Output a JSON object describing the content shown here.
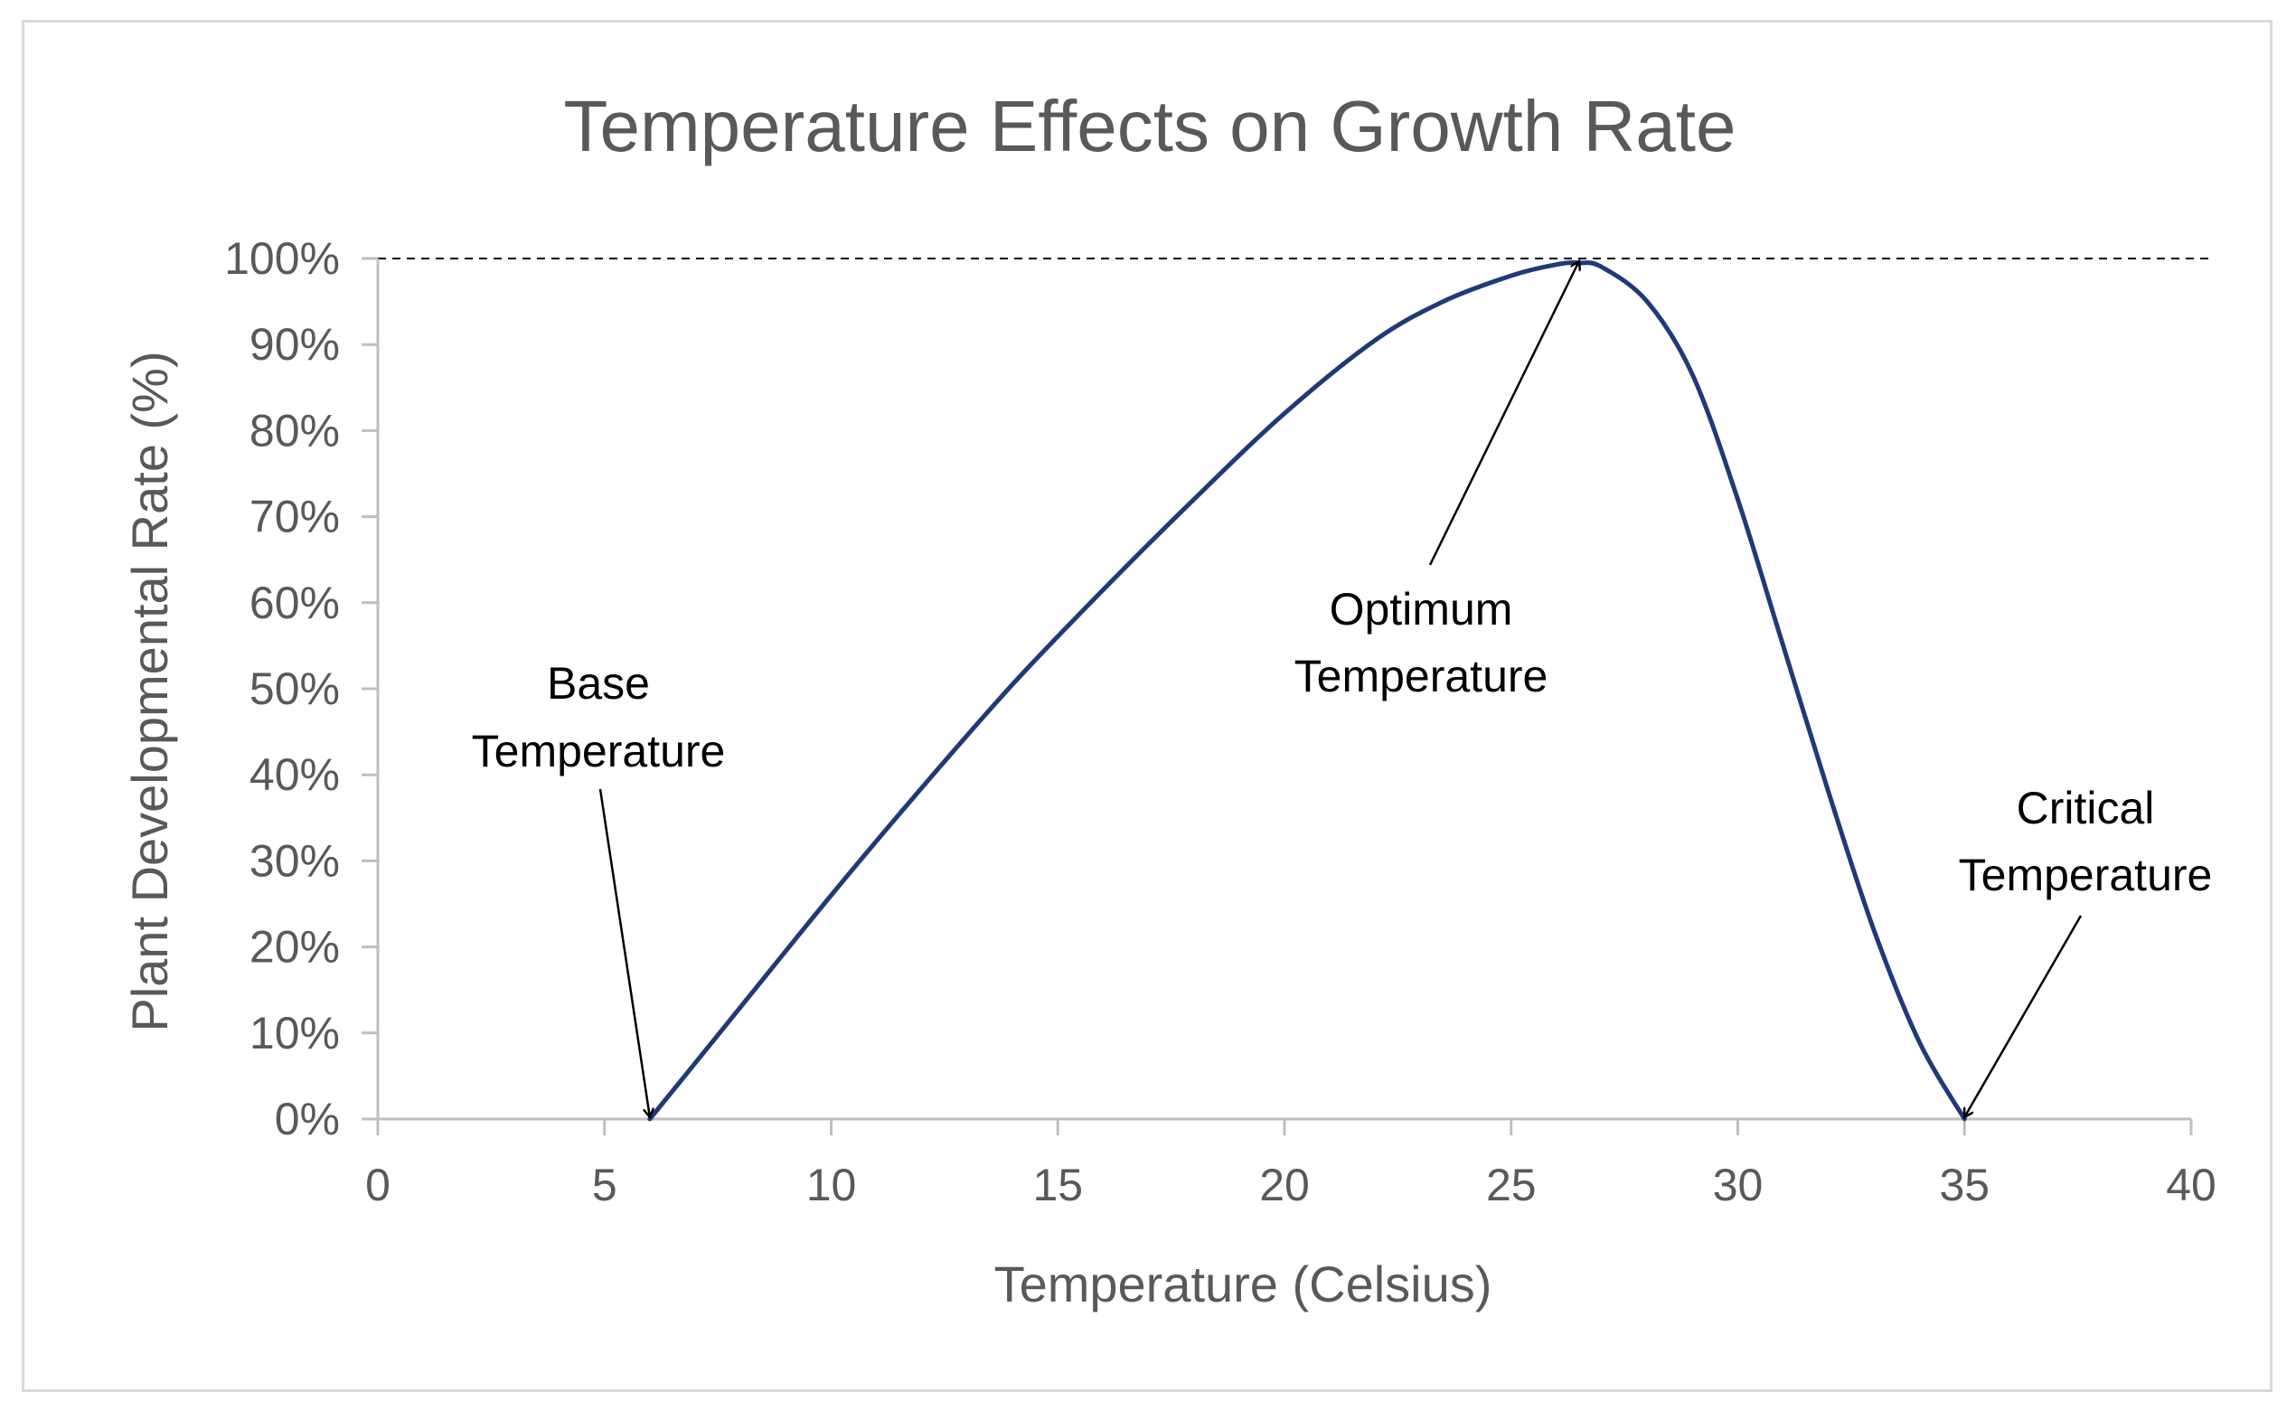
{
  "chart_data": {
    "type": "line",
    "title": "Temperature  Effects on Growth Rate",
    "xlabel": "Temperature (Celsius)",
    "ylabel": "Plant Developmental Rate (%)",
    "xlim": [
      0,
      40
    ],
    "ylim": [
      0,
      100
    ],
    "x_ticks": [
      0,
      5,
      10,
      15,
      20,
      25,
      30,
      35,
      40
    ],
    "x_tick_labels": [
      "0",
      "5",
      "10",
      "15",
      "20",
      "25",
      "30",
      "35",
      "40"
    ],
    "y_ticks": [
      0,
      10,
      20,
      30,
      40,
      50,
      60,
      70,
      80,
      90,
      100
    ],
    "y_tick_labels": [
      "0%",
      "10%",
      "20%",
      "30%",
      "40%",
      "50%",
      "60%",
      "70%",
      "80%",
      "90%",
      "100%"
    ],
    "grid": false,
    "reference_line": {
      "y": 100,
      "style": "dashed"
    },
    "series": [
      {
        "name": "Developmental Rate",
        "color": "#1f3a78",
        "x": [
          6,
          8,
          10,
          12,
          14,
          16,
          18,
          20,
          22,
          23.5,
          25,
          26,
          26.5,
          27,
          28,
          29,
          30,
          31,
          32,
          33,
          34,
          35
        ],
        "y": [
          0,
          13,
          26,
          38.5,
          50.5,
          61.5,
          72,
          82,
          90.5,
          95,
          98,
          99.3,
          99.5,
          99,
          95,
          86.5,
          72,
          55,
          38,
          22,
          9,
          0
        ]
      }
    ],
    "annotations": [
      {
        "id": "base",
        "lines": [
          "Base",
          "Temperature"
        ],
        "point": [
          6,
          0
        ]
      },
      {
        "id": "optimum",
        "lines": [
          "Optimum",
          "Temperature"
        ],
        "point": [
          26.5,
          99.5
        ]
      },
      {
        "id": "critical",
        "lines": [
          "Critical",
          "Temperature"
        ],
        "point": [
          35,
          0
        ]
      }
    ]
  }
}
